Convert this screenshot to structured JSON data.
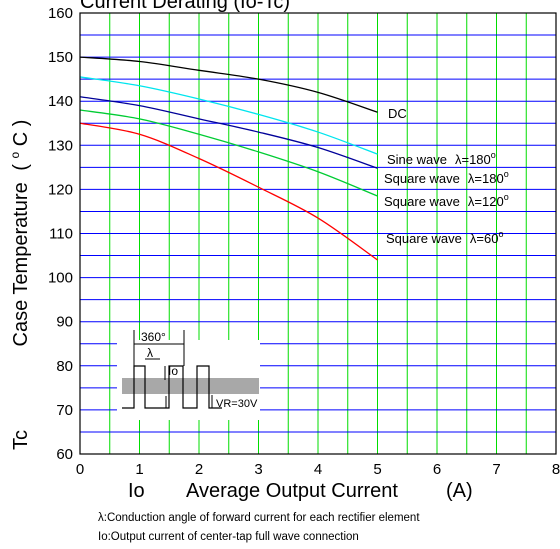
{
  "chart_data": {
    "type": "line",
    "title": "Current Derating  (Io-Tc)",
    "xlabel": "Average Output Current",
    "xlabel_symbol": "Io",
    "xlabel_unit": "(A)",
    "ylabel": "Case Temperature",
    "ylabel_unit_o": "o",
    "ylabel_unit_c": "C",
    "ylabel_paren_open": "(",
    "ylabel_paren_close": ")",
    "ylabel_symbol": "Tc",
    "xlim": [
      0,
      8
    ],
    "ylim": [
      60,
      160
    ],
    "x_ticks": [
      "0",
      "1",
      "2",
      "3",
      "4",
      "5",
      "6",
      "7",
      "8"
    ],
    "y_ticks": [
      "60",
      "70",
      "80",
      "90",
      "100",
      "110",
      "120",
      "130",
      "140",
      "150",
      "160"
    ],
    "grid": true,
    "grid_colors": {
      "vertical": "#00dd00",
      "horizontal": "#0000ff"
    },
    "series": [
      {
        "name": "DC",
        "color": "#000000",
        "x": [
          0,
          1,
          2,
          3,
          4,
          5
        ],
        "y": [
          150,
          149,
          147,
          145,
          142,
          137.5
        ],
        "label_lambda": "",
        "label_deg": ""
      },
      {
        "name": "Sine wave",
        "color": "#00e5ee",
        "x": [
          0,
          1,
          2,
          3,
          4,
          5
        ],
        "y": [
          145.5,
          143.5,
          140.5,
          137,
          133,
          128
        ],
        "label_lambda": "λ=180",
        "label_deg": "o"
      },
      {
        "name": "Square wave",
        "color": "#000099",
        "x": [
          0,
          1,
          2,
          3,
          4,
          5
        ],
        "y": [
          141,
          139,
          136,
          133,
          129.5,
          124.8
        ],
        "label_lambda": "λ=180",
        "label_deg": "o"
      },
      {
        "name": "Square wave",
        "color": "#00cc33",
        "x": [
          0,
          1,
          2,
          3,
          4,
          5
        ],
        "y": [
          138,
          136,
          132.5,
          128.5,
          124,
          118.5
        ],
        "label_lambda": "λ=120",
        "label_deg": "o"
      },
      {
        "name": "Square wave",
        "color": "#ff0000",
        "x": [
          0,
          1,
          2,
          3,
          4,
          5
        ],
        "y": [
          135,
          132.5,
          127,
          120.5,
          113.5,
          104
        ],
        "label_lambda": "λ=60",
        "label_deg": "o"
      }
    ],
    "inset": {
      "period_label": "360°",
      "lambda_label": "λ",
      "current_label": "Io",
      "voltage_label": "VR=30V"
    },
    "notes": [
      "λ:Conduction angle of forward current for each rectifier element",
      "Io:Output current of center-tap full wave connection"
    ]
  }
}
